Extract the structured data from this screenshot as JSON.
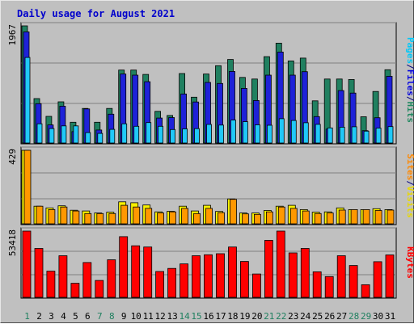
{
  "chart_data": {
    "type": "bar",
    "title": "Daily usage for August 2021",
    "x": [
      "1",
      "2",
      "3",
      "4",
      "5",
      "6",
      "7",
      "8",
      "9",
      "10",
      "11",
      "12",
      "13",
      "14",
      "15",
      "16",
      "17",
      "18",
      "19",
      "20",
      "21",
      "22",
      "23",
      "24",
      "25",
      "26",
      "27",
      "28",
      "29",
      "30",
      "31"
    ],
    "weekend_days": [
      "1",
      "7",
      "8",
      "14",
      "15",
      "21",
      "22",
      "28",
      "29"
    ],
    "panels": [
      {
        "id": "hits-files-pages",
        "max_label": "1967",
        "ylim": [
          0,
          1967
        ],
        "legend": [
          {
            "text": "Pages",
            "color": "#00c8f8"
          },
          {
            "text": "/",
            "color": "#000080"
          },
          {
            "text": "Files",
            "color": "#0000e0"
          },
          {
            "text": "/",
            "color": "#000080"
          },
          {
            "text": "Hits",
            "color": "#208860"
          }
        ],
        "series": [
          {
            "name": "Hits",
            "color": "#208060",
            "values": [
              1967,
              746,
              448,
              692,
              348,
              580,
              348,
              580,
              1225,
              1225,
              1152,
              532,
              462,
              1166,
              769,
              1159,
              1298,
              1403,
              1102,
              1074,
              1450,
              1677,
              1378,
              1426,
              708,
              1074,
              1074,
              1066,
              441,
              866,
              1231
            ]
          },
          {
            "name": "Files",
            "color": "#1e22d8",
            "values": [
              1865,
              661,
              304,
              618,
              191,
              573,
              219,
              484,
              1159,
              1140,
              1029,
              419,
              427,
              824,
              689,
              1018,
              1000,
              1202,
              917,
              713,
              1140,
              1528,
              1140,
              1198,
              443,
              234,
              880,
              838,
              208,
              424,
              1120
            ]
          },
          {
            "name": "Pages",
            "color": "#20c8f8",
            "values": [
              1436,
              323,
              243,
              287,
              287,
              175,
              162,
              229,
              323,
              281,
              343,
              281,
              226,
              237,
              242,
              312,
              301,
              385,
              358,
              305,
              299,
              409,
              378,
              341,
              314,
              254,
              266,
              272,
              199,
              251,
              275
            ]
          }
        ]
      },
      {
        "id": "visits-sites",
        "max_label": "429",
        "ylim": [
          0,
          429
        ],
        "legend": [
          {
            "text": "Sites",
            "color": "#ff8800"
          },
          {
            "text": "/",
            "color": "#000080"
          },
          {
            "text": "Visits",
            "color": "#e8d800"
          }
        ],
        "series": [
          {
            "name": "Visits",
            "color": "#f8f000",
            "values": [
              429,
              103,
              93,
              105,
              79,
              75,
              63,
              68,
              128,
              123,
              110,
              70,
              73,
              103,
              75,
              108,
              72,
              145,
              63,
              63,
              78,
              103,
              108,
              83,
              68,
              70,
              93,
              83,
              83,
              88,
              83
            ]
          },
          {
            "name": "Sites",
            "color": "#ff9800",
            "values": [
              429,
              103,
              83,
              98,
              75,
              60,
              60,
              60,
              108,
              98,
              90,
              63,
              70,
              90,
              60,
              90,
              65,
              143,
              58,
              55,
              70,
              98,
              90,
              75,
              60,
              63,
              80,
              83,
              83,
              78,
              80
            ]
          }
        ]
      },
      {
        "id": "kbytes",
        "max_label": "53418",
        "ylim": [
          0,
          53418
        ],
        "legend": [
          {
            "text": "KBytes",
            "color": "#ff0000"
          }
        ],
        "series": [
          {
            "name": "KBytes",
            "color": "#ff0000",
            "values": [
              53418,
              39380,
              21130,
              33570,
              11360,
              28060,
              13610,
              30310,
              48930,
              41570,
              40600,
              20860,
              23300,
              27000,
              33540,
              34310,
              35180,
              40600,
              28920,
              18830,
              45950,
              53418,
              35860,
              39380,
              20580,
              16750,
              33570,
              25670,
              10190,
              28750,
              34170
            ]
          }
        ]
      }
    ]
  }
}
